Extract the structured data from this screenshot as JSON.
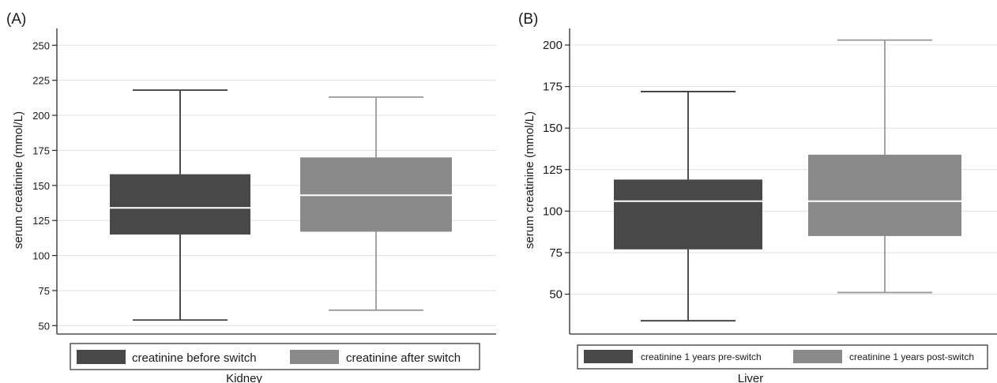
{
  "chart_data": [
    {
      "type": "box",
      "panel_label": "(A)",
      "ylabel": "serum creatinine (mmol/L)",
      "xlabel": "Kidney",
      "yticks": [
        50,
        75,
        100,
        125,
        150,
        175,
        200,
        225,
        250
      ],
      "ylim": [
        44,
        262
      ],
      "grid": true,
      "legend_position": "bottom",
      "colors": {
        "series_1": "#484848",
        "series_2": "#8a8a8a",
        "median": "#ffffff",
        "whisker_1": "#3a3a3a",
        "whisker_2": "#9a9a9a"
      },
      "series": [
        {
          "name": "creatinine before switch",
          "min": 54,
          "q1": 115,
          "median": 134,
          "q3": 158,
          "max": 218
        },
        {
          "name": "creatinine after switch",
          "min": 61,
          "q1": 117,
          "median": 143,
          "q3": 170,
          "max": 213
        }
      ]
    },
    {
      "type": "box",
      "panel_label": "(B)",
      "ylabel": "serum creatinine (mmol/L)",
      "xlabel": "Liver",
      "yticks": [
        50,
        75,
        100,
        125,
        150,
        175,
        200
      ],
      "ylim": [
        26,
        210
      ],
      "grid": true,
      "legend_position": "bottom",
      "colors": {
        "series_1": "#484848",
        "series_2": "#8a8a8a",
        "median": "#ffffff",
        "whisker_1": "#3a3a3a",
        "whisker_2": "#9a9a9a"
      },
      "series": [
        {
          "name": "creatinine 1 years pre-switch",
          "min": 34,
          "q1": 77,
          "median": 106,
          "q3": 119,
          "max": 172
        },
        {
          "name": "creatinine 1 years post-switch",
          "min": 51,
          "q1": 85,
          "median": 106,
          "q3": 134,
          "max": 203
        }
      ]
    }
  ]
}
